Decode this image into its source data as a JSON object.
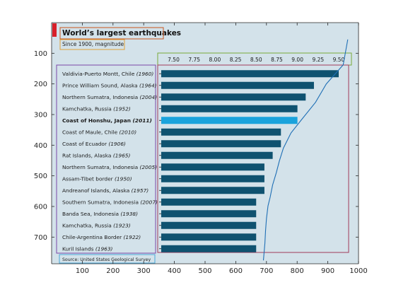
{
  "colors": {
    "background": "#d3e2ea",
    "bar": "#0f5270",
    "bar_highlight": "#1aa3dc",
    "red_tab": "#d8202a",
    "title_box": "#c8541c",
    "subtitle_box": "#e0a23a",
    "top_axis_box": "#7aab3a",
    "bar_region_box": "#a23a5a",
    "label_box": "#7b48a8",
    "source_box": "#4aa8d8",
    "trend_line": "#1f6fb5"
  },
  "chart_data": {
    "type": "bar",
    "orientation": "horizontal",
    "title": "World’s largest earthquakes",
    "subtitle": "Since 1900, magnitude",
    "source": "Source: United States Geological Survey",
    "categories": [
      {
        "place": "Valdivia-Puerto Montt, Chile",
        "year": "(1960)"
      },
      {
        "place": "Prince William Sound, Alaska",
        "year": "(1964)"
      },
      {
        "place": "Northern Sumatra, Indonesia",
        "year": "(2004)"
      },
      {
        "place": "Kamchatka, Russia",
        "year": "(1952)"
      },
      {
        "place": "Coast of Honshu, Japan",
        "year": "(2011)"
      },
      {
        "place": "Coast of Maule, Chile",
        "year": "(2010)"
      },
      {
        "place": "Coast of Ecuador",
        "year": "(1906)"
      },
      {
        "place": "Rat Islands, Alaska",
        "year": "(1965)"
      },
      {
        "place": "Northern Sumatra, Indonesia",
        "year": "(2005)"
      },
      {
        "place": "Assam-Tibet border",
        "year": "(1950)"
      },
      {
        "place": "Andreanof Islands, Alaska",
        "year": "(1957)"
      },
      {
        "place": "Southern Sumatra, Indonesia",
        "year": "(2007)"
      },
      {
        "place": "Banda Sea, Indonesia",
        "year": "(1938)"
      },
      {
        "place": "Kamchatka, Russia",
        "year": "(1923)"
      },
      {
        "place": "Chile-Argentina Border",
        "year": "(1922)"
      },
      {
        "place": "Kuril Islands",
        "year": "(1963)"
      }
    ],
    "values": [
      9.5,
      9.2,
      9.1,
      9.0,
      9.0,
      8.8,
      8.8,
      8.7,
      8.6,
      8.6,
      8.6,
      8.5,
      8.5,
      8.5,
      8.5,
      8.5
    ],
    "highlight_index": 4,
    "top_axis_ticks": [
      "7.50",
      "7.75",
      "8.00",
      "8.25",
      "8.50",
      "8.75",
      "9.00",
      "9.25",
      "9.50"
    ],
    "top_axis_range": [
      7.35,
      9.62
    ],
    "x_ticks": [
      100,
      200,
      300,
      400,
      500,
      600,
      700,
      800,
      900,
      1000
    ],
    "y_ticks": [
      100,
      200,
      300,
      400,
      500,
      600,
      700
    ],
    "x_range": [
      0,
      1000
    ],
    "y_range": [
      787,
      0
    ],
    "trend_line": {
      "x": [
        965,
        950,
        895,
        860,
        815,
        780,
        755,
        742,
        732,
        720,
        712,
        705,
        700,
        697,
        695,
        690
      ],
      "y": [
        55,
        138,
        200,
        260,
        316,
        360,
        410,
        452,
        490,
        530,
        570,
        598,
        640,
        680,
        720,
        776
      ]
    }
  }
}
